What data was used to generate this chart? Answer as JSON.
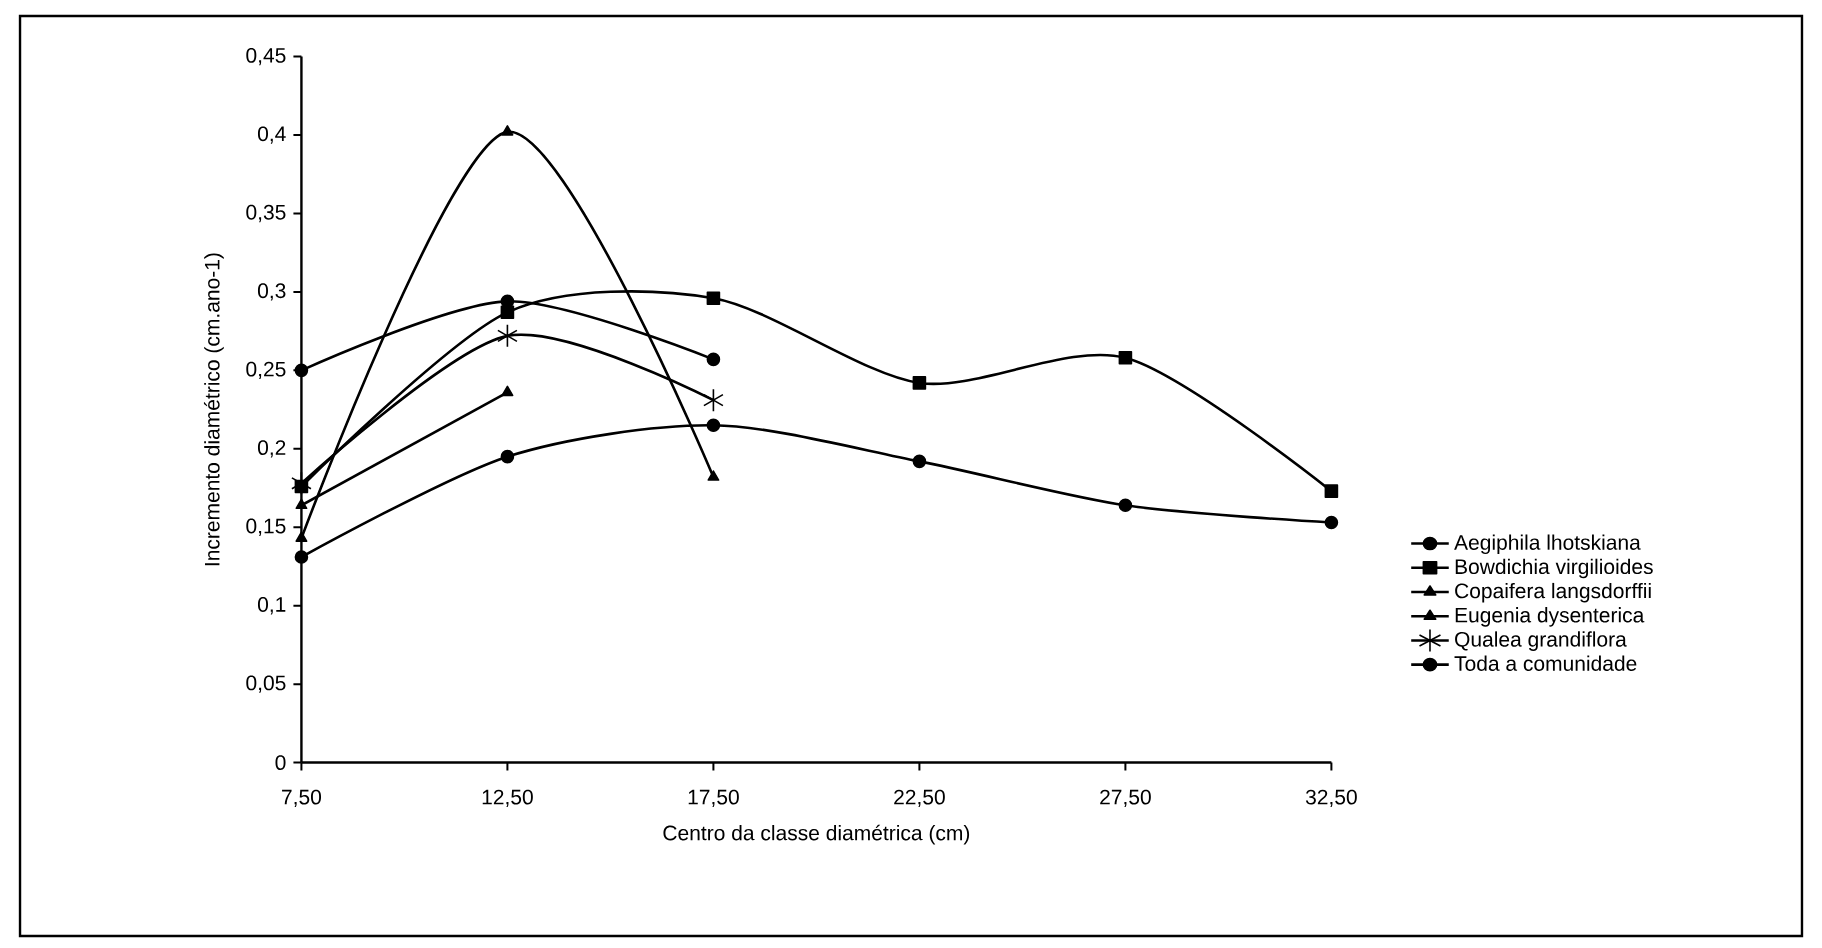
{
  "chart_data": {
    "type": "line",
    "xlabel": "Centro da classe diamétrica (cm)",
    "ylabel": "Incremento diamétrico (cm.ano-1)",
    "x": [
      7.5,
      12.5,
      17.5,
      22.5,
      27.5,
      32.5
    ],
    "xlim": [
      7.5,
      32.5
    ],
    "xticks": [
      {
        "value": 7.5,
        "label": "7,50"
      },
      {
        "value": 12.5,
        "label": "12,50"
      },
      {
        "value": 17.5,
        "label": "17,50"
      },
      {
        "value": 22.5,
        "label": "22,50"
      },
      {
        "value": 27.5,
        "label": "27,50"
      },
      {
        "value": 32.5,
        "label": "32,50"
      }
    ],
    "ylim": [
      0,
      0.45
    ],
    "yticks": [
      {
        "value": 0,
        "label": "0"
      },
      {
        "value": 0.05,
        "label": "0,05"
      },
      {
        "value": 0.1,
        "label": "0,1"
      },
      {
        "value": 0.15,
        "label": "0,15"
      },
      {
        "value": 0.2,
        "label": "0,2"
      },
      {
        "value": 0.25,
        "label": "0,25"
      },
      {
        "value": 0.3,
        "label": "0,3"
      },
      {
        "value": 0.35,
        "label": "0,35"
      },
      {
        "value": 0.4,
        "label": "0,4"
      },
      {
        "value": 0.45,
        "label": "0,45"
      }
    ],
    "series": [
      {
        "name": "Aegiphila lhotskiana",
        "color": "#000000",
        "marker": "circle",
        "values": [
          0.25,
          0.294,
          0.257,
          null,
          null,
          null
        ]
      },
      {
        "name": "Bowdichia virgilioides",
        "color": "#000000",
        "marker": "square",
        "values": [
          0.176,
          0.287,
          0.296,
          0.242,
          0.258,
          0.173
        ]
      },
      {
        "name": "Copaifera langsdorffii",
        "color": "#000000",
        "marker": "triangle",
        "values": [
          0.143,
          0.402,
          0.182,
          null,
          null,
          null
        ]
      },
      {
        "name": "Eugenia dysenterica",
        "color": "#000000",
        "marker": "triangle",
        "values": [
          0.164,
          0.236,
          null,
          null,
          null,
          null
        ]
      },
      {
        "name": "Qualea grandiflora",
        "color": "#000000",
        "marker": "cross",
        "values": [
          0.178,
          0.272,
          0.231,
          null,
          null,
          null
        ]
      },
      {
        "name": "Toda a comunidade",
        "color": "#000000",
        "marker": "circle",
        "values": [
          0.131,
          0.195,
          0.215,
          0.192,
          0.164,
          0.153
        ]
      }
    ],
    "line_style": "solid",
    "legend": "right",
    "grid": false
  }
}
